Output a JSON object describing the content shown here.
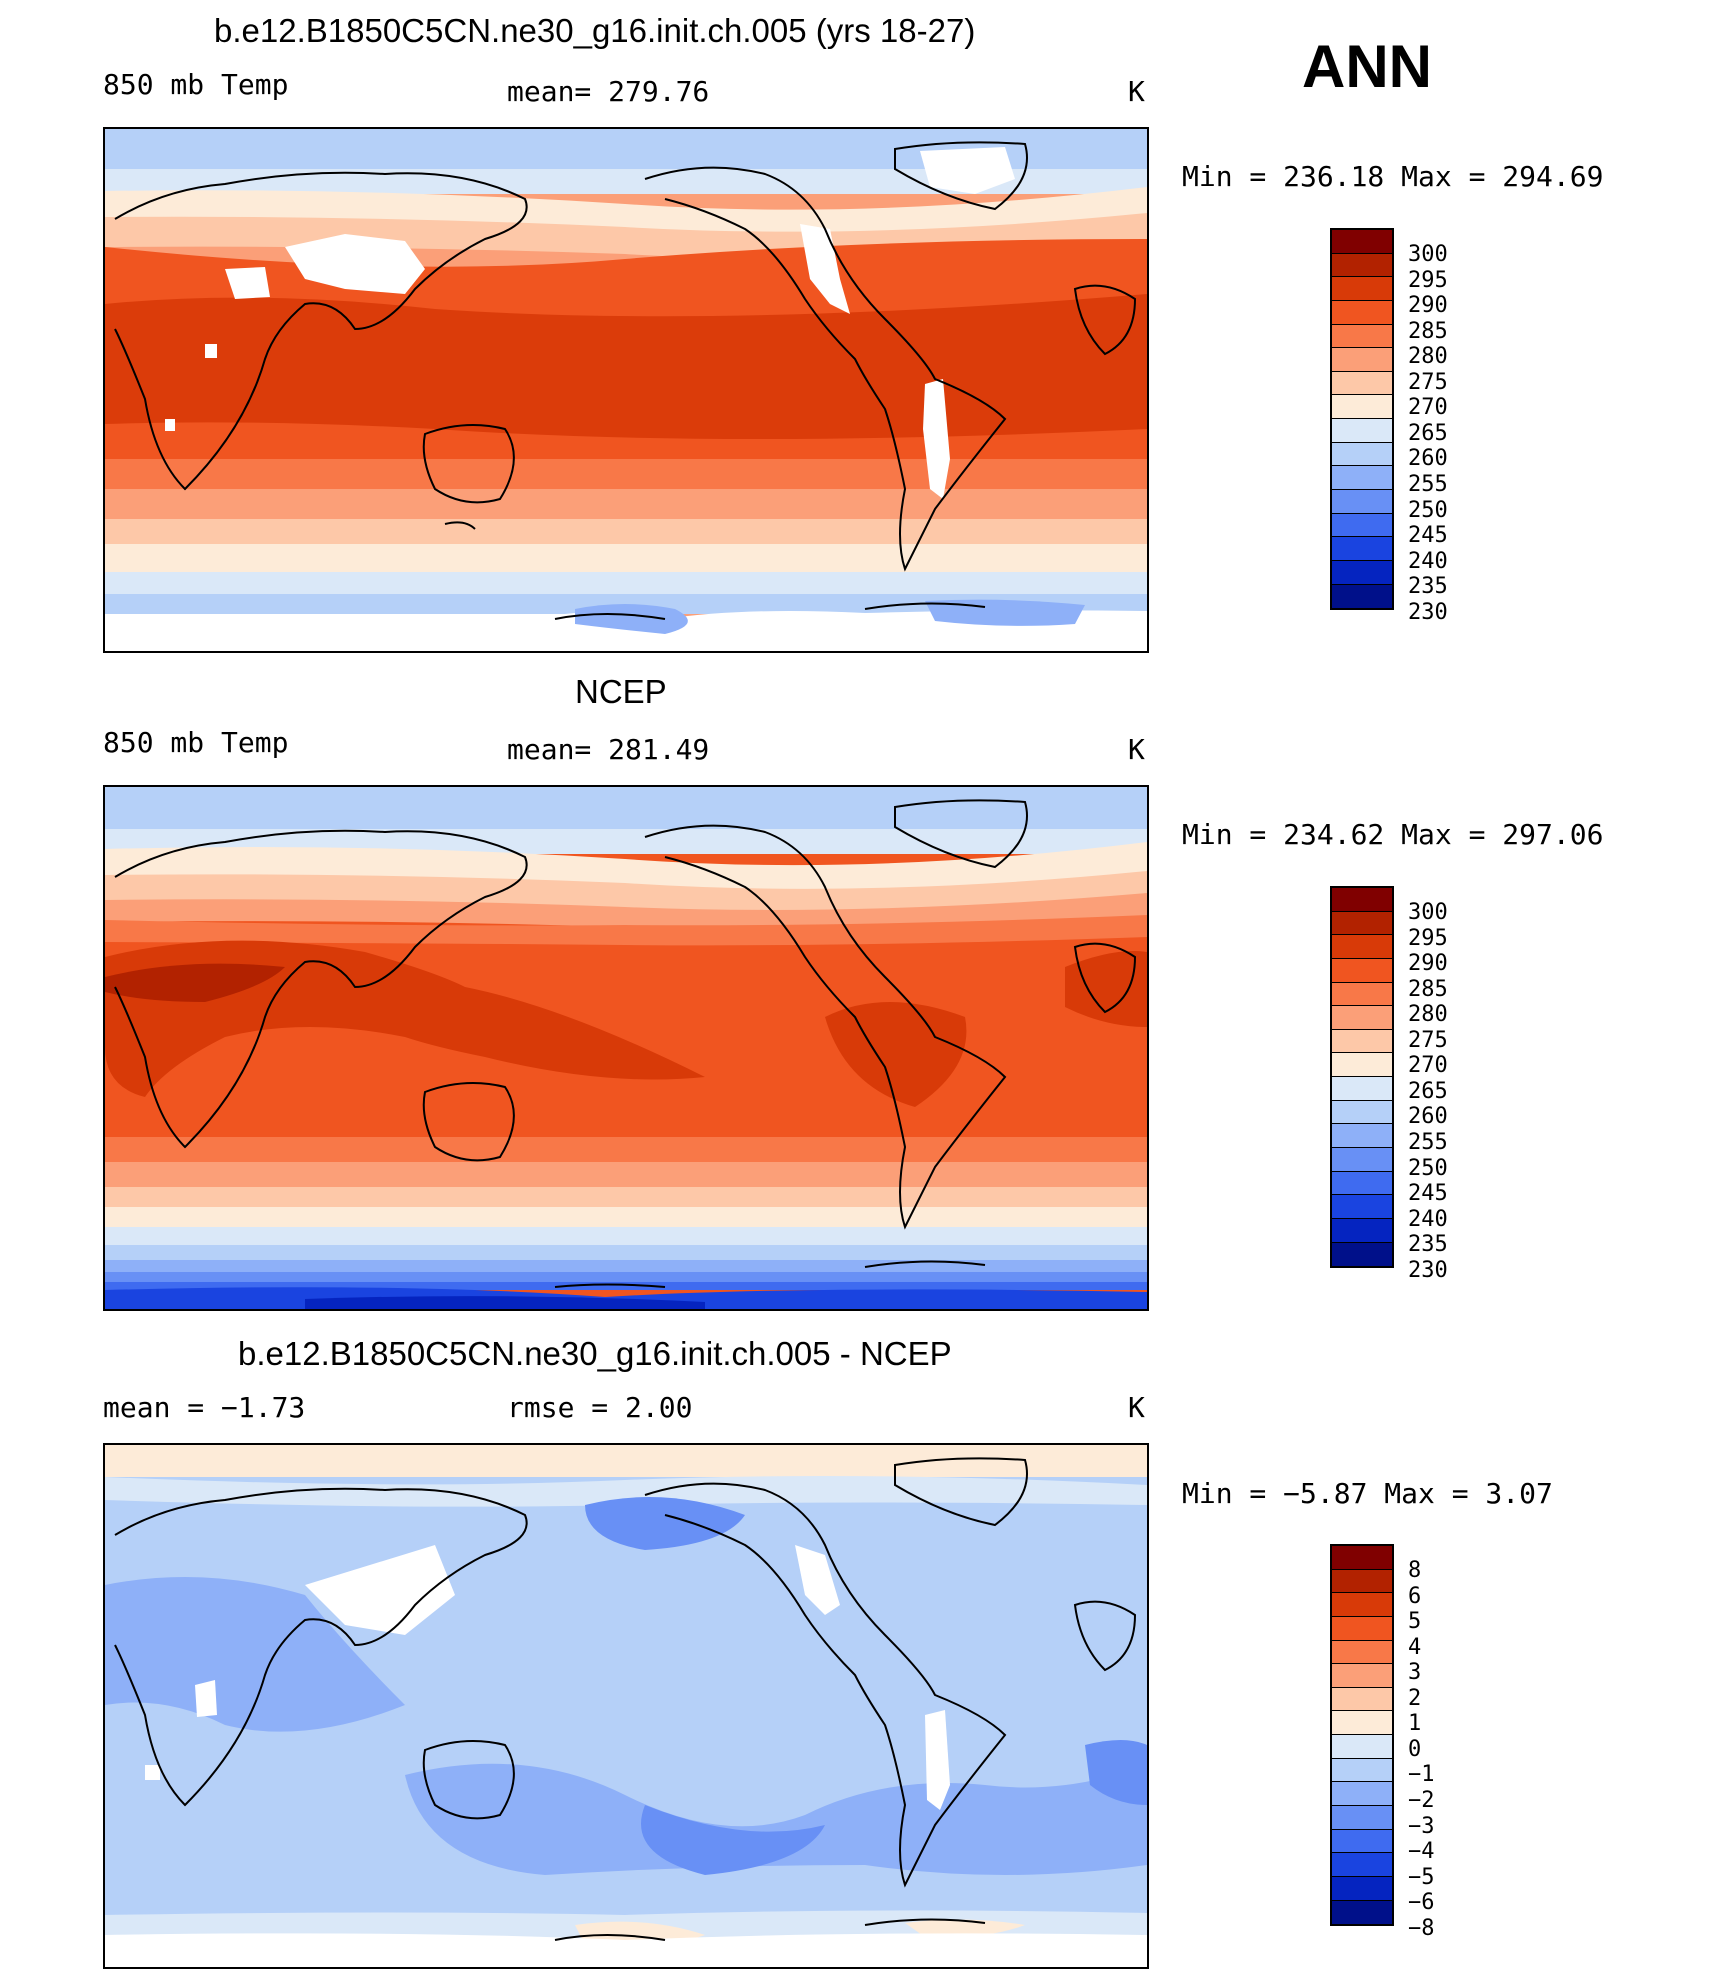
{
  "season": "ANN",
  "panels": [
    {
      "title": "b.e12.B1850C5CN.ne30_g16.init.ch.005 (yrs 18-27)",
      "left": "850 mb Temp",
      "center": "mean=  279.76",
      "units": "K",
      "minmax": "Min  =  236.18  Max  =  294.69"
    },
    {
      "title": "NCEP",
      "left": "850 mb Temp",
      "center": "mean=  281.49",
      "units": "K",
      "minmax": "Min  =  234.62  Max  =  297.06"
    },
    {
      "title": "b.e12.B1850C5CN.ne30_g16.init.ch.005 - NCEP",
      "left": "mean  =     −1.73",
      "center": "rmse  =     2.00",
      "units": "K",
      "minmax": "Min  =    −5.87  Max  =     3.07"
    }
  ],
  "colorbars": {
    "temperature": {
      "labels": [
        "300",
        "295",
        "290",
        "285",
        "280",
        "275",
        "270",
        "265",
        "260",
        "255",
        "250",
        "245",
        "240",
        "235",
        "230"
      ],
      "colors": [
        "#800000",
        "#b22200",
        "#d83a08",
        "#f05520",
        "#f87848",
        "#fb9f78",
        "#fdc8a8",
        "#fdebd8",
        "#dae8f8",
        "#b5d0f8",
        "#8eb0f8",
        "#6890f5",
        "#3f6bf0",
        "#1a44e0",
        "#0524c0",
        "#00108a"
      ]
    },
    "difference": {
      "labels": [
        "8",
        "6",
        "5",
        "4",
        "3",
        "2",
        "1",
        "0",
        "−1",
        "−2",
        "−3",
        "−4",
        "−5",
        "−6",
        "−8"
      ],
      "colors": [
        "#800000",
        "#b22200",
        "#d83a08",
        "#f05520",
        "#f87848",
        "#fb9f78",
        "#fdc8a8",
        "#fdebd8",
        "#dae8f8",
        "#b5d0f8",
        "#8eb0f8",
        "#6890f5",
        "#3f6bf0",
        "#1a44e0",
        "#0524c0",
        "#00108a"
      ]
    }
  },
  "map": {
    "projection": "cylindrical equidistant",
    "center_longitude": 180,
    "panel_fields": [
      "model 850 mb temperature",
      "NCEP 850 mb temperature",
      "model minus NCEP difference"
    ]
  }
}
